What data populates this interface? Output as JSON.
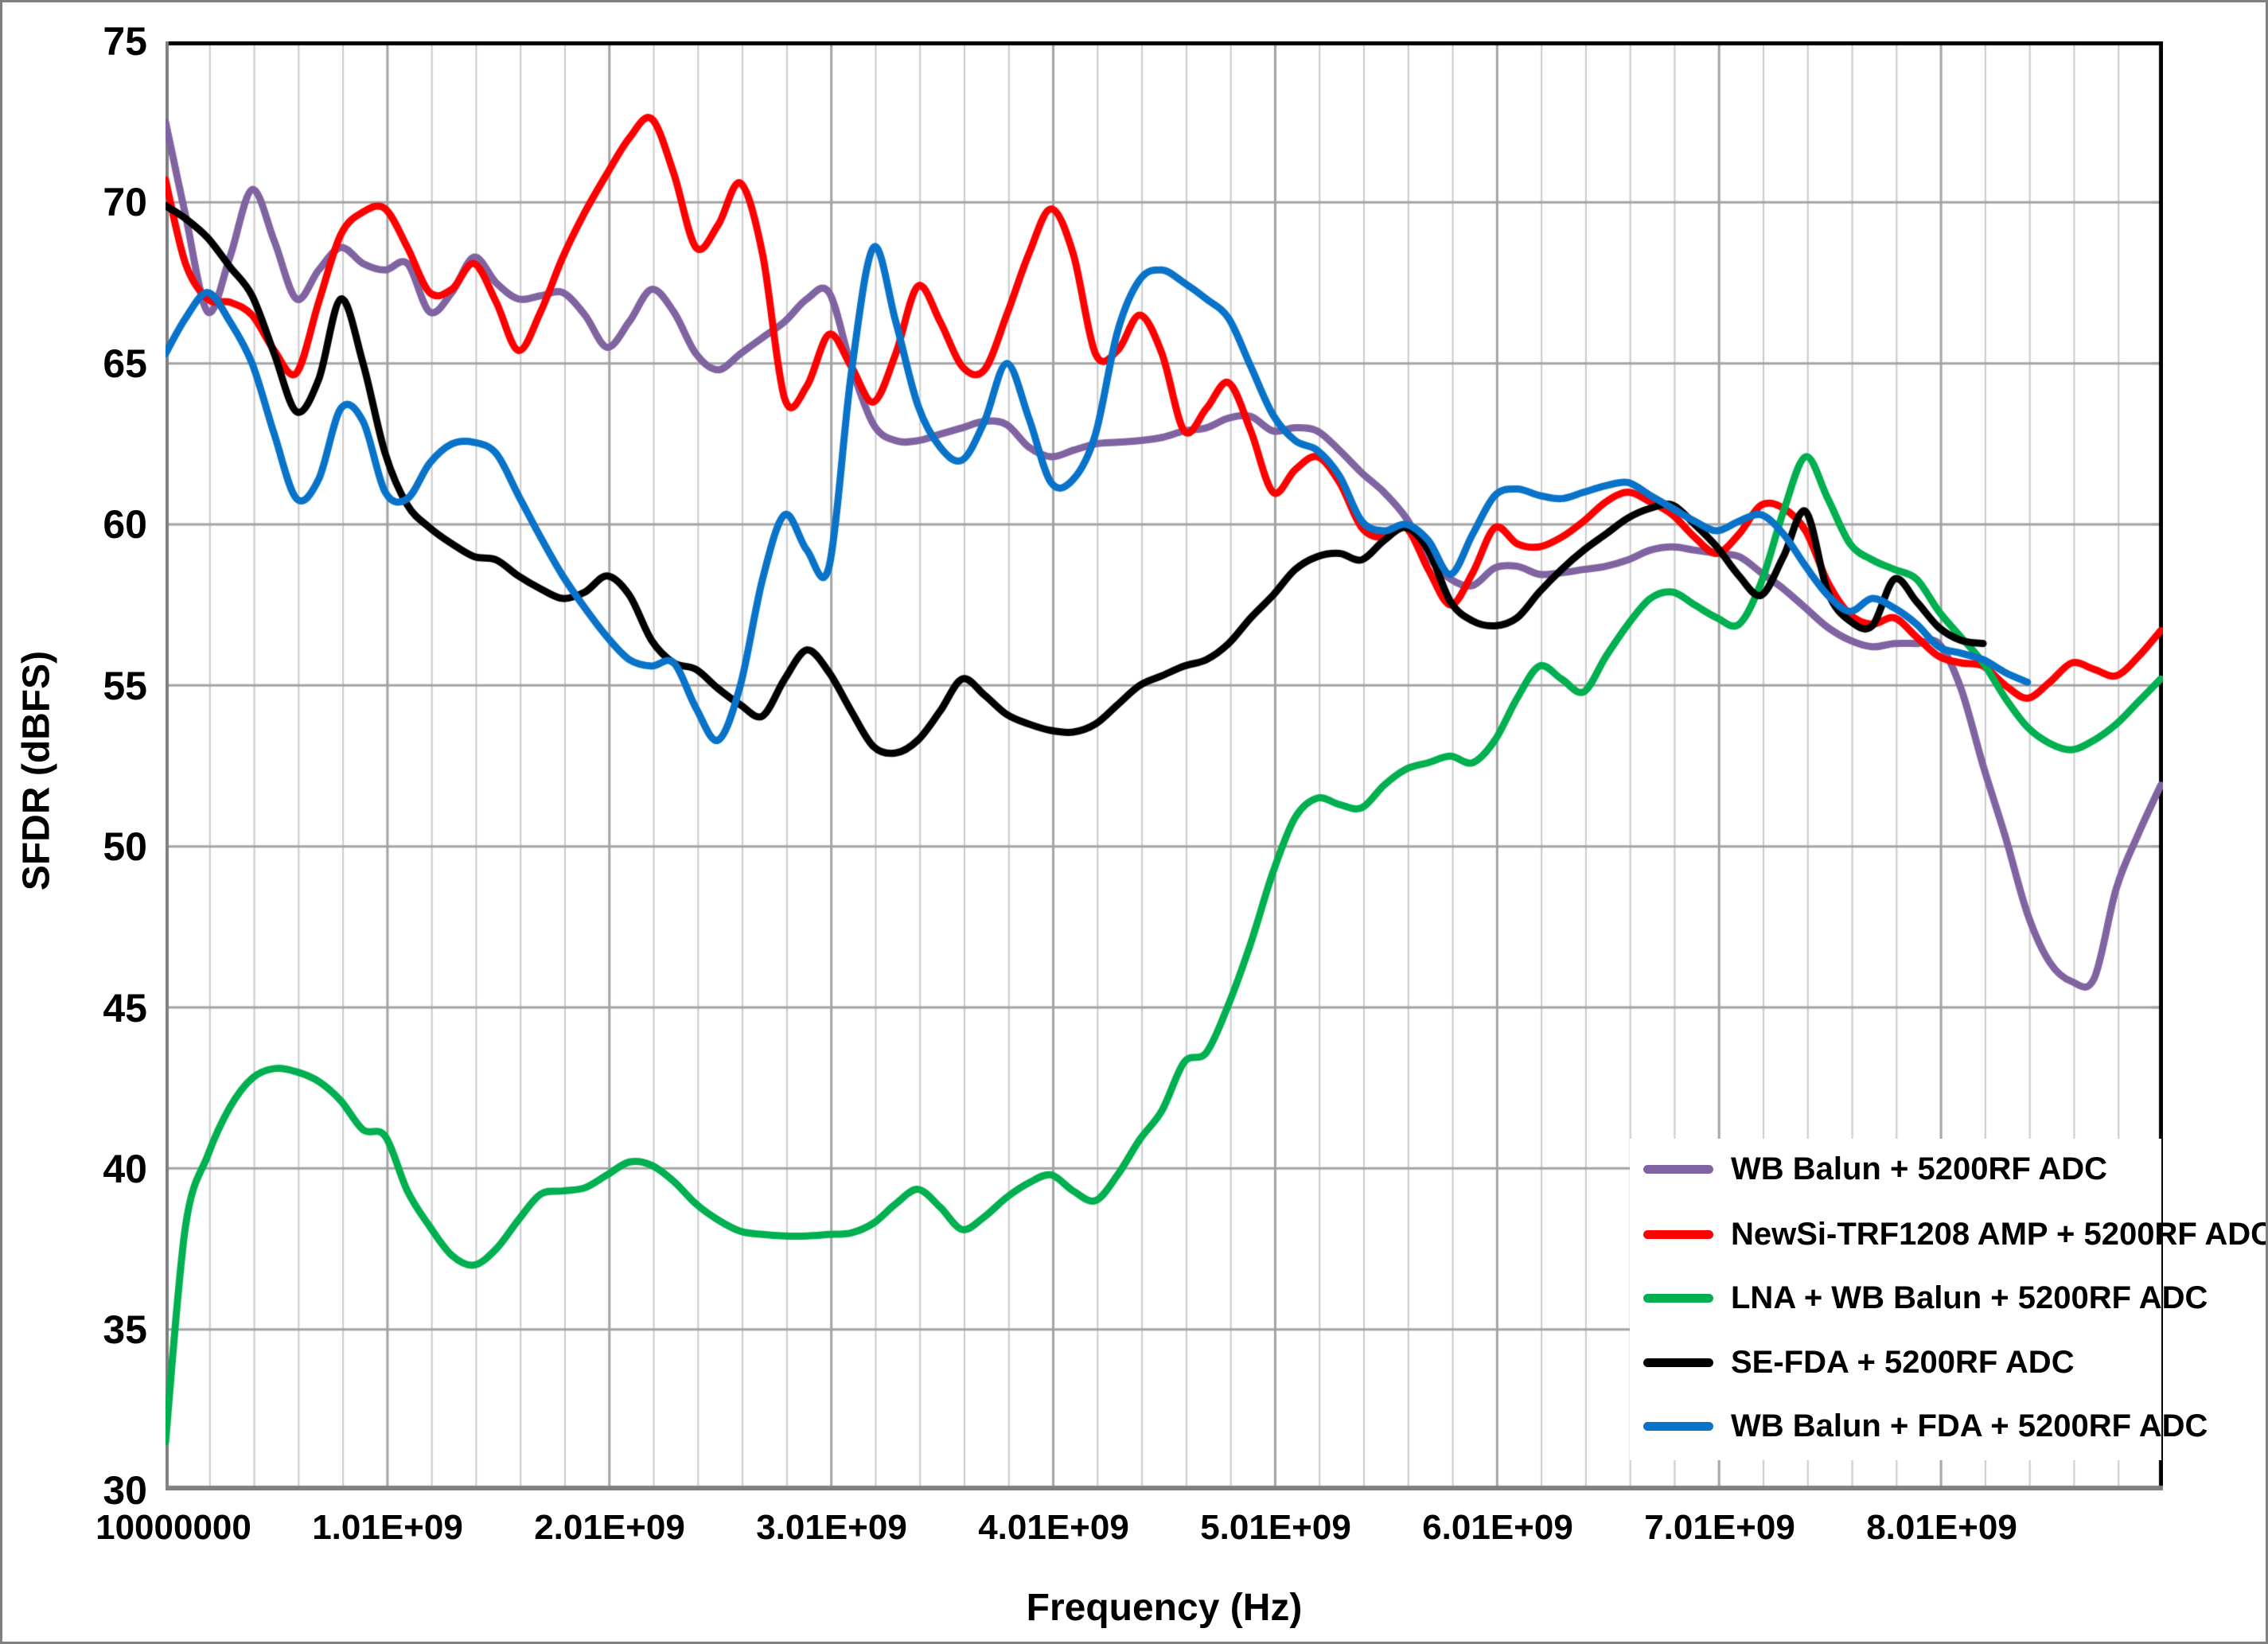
{
  "y_axis": {
    "title": "SFDR (dBFS)",
    "ticks": [
      "75",
      "70",
      "65",
      "60",
      "55",
      "50",
      "45",
      "40",
      "35",
      "30"
    ],
    "min": 30,
    "max": 75,
    "step": 5
  },
  "x_axis": {
    "title": "Frequency (Hz)",
    "tick_labels": [
      "10000000",
      "1.01E+09",
      "2.01E+09",
      "3.01E+09",
      "4.01E+09",
      "5.01E+09",
      "6.01E+09",
      "7.01E+09",
      "8.01E+09"
    ],
    "min_ghz": 0.01,
    "max_ghz": 9.01,
    "major_step_ghz": 1.0,
    "minor_step_ghz": 0.2
  },
  "legend": {
    "items": [
      {
        "label": "WB Balun + 5200RF ADC",
        "color": "#8064A2"
      },
      {
        "label": "NewSi-TRF1208 AMP + 5200RF ADC",
        "color": "#FF0000"
      },
      {
        "label": "LNA + WB Balun + 5200RF ADC",
        "color": "#00B050"
      },
      {
        "label": "SE-FDA + 5200RF ADC",
        "color": "#000000"
      },
      {
        "label": "WB Balun + FDA + 5200RF ADC",
        "color": "#0873C9"
      }
    ]
  },
  "colors": {
    "grid_minor": "#C9C9C9",
    "grid_major": "#A3A3A3",
    "border_dark": "#000000",
    "border_gray": "#808080"
  },
  "chart_data": {
    "type": "line",
    "title": "",
    "xlabel": "Frequency (Hz)",
    "ylabel": "SFDR (dBFS)",
    "x_unit": "GHz",
    "xlim": [
      0.01,
      9.01
    ],
    "ylim": [
      30,
      75
    ],
    "grid": true,
    "legend_position": "inside-bottom-right",
    "x": [
      0.01,
      0.1,
      0.2,
      0.3,
      0.4,
      0.5,
      0.6,
      0.7,
      0.8,
      0.9,
      1.0,
      1.1,
      1.2,
      1.3,
      1.4,
      1.5,
      1.6,
      1.7,
      1.8,
      1.9,
      2.0,
      2.1,
      2.2,
      2.3,
      2.4,
      2.5,
      2.6,
      2.7,
      2.8,
      2.9,
      3.0,
      3.1,
      3.2,
      3.3,
      3.4,
      3.5,
      3.6,
      3.7,
      3.8,
      3.9,
      4.0,
      4.1,
      4.2,
      4.3,
      4.4,
      4.5,
      4.6,
      4.7,
      4.8,
      4.9,
      5.0,
      5.1,
      5.2,
      5.3,
      5.4,
      5.5,
      5.6,
      5.7,
      5.8,
      5.9,
      6.0,
      6.1,
      6.2,
      6.3,
      6.4,
      6.5,
      6.6,
      6.7,
      6.8,
      6.9,
      7.0,
      7.1,
      7.2,
      7.3,
      7.4,
      7.5,
      7.6,
      7.7,
      7.8,
      7.9,
      8.0,
      8.1,
      8.2,
      8.3,
      8.4,
      8.5,
      8.6,
      8.7,
      8.8,
      8.9,
      9.0
    ],
    "series": [
      {
        "name": "WB Balun + 5200RF ADC",
        "color": "#8064A2",
        "values": [
          72.5,
          69.6,
          66.6,
          68.3,
          70.4,
          68.8,
          67.0,
          67.9,
          68.6,
          68.1,
          67.9,
          68.1,
          66.6,
          67.2,
          68.3,
          67.5,
          67.0,
          67.1,
          67.2,
          66.5,
          65.5,
          66.3,
          67.3,
          66.6,
          65.3,
          64.8,
          65.3,
          65.8,
          66.3,
          67.0,
          67.2,
          64.9,
          63.1,
          62.6,
          62.6,
          62.8,
          63.0,
          63.2,
          63.1,
          62.4,
          62.1,
          62.3,
          62.5,
          62.55,
          62.6,
          62.7,
          62.9,
          63.0,
          63.3,
          63.35,
          62.9,
          63.0,
          62.9,
          62.3,
          61.6,
          61.0,
          60.2,
          59.0,
          58.3,
          58.1,
          58.65,
          58.7,
          58.45,
          58.5,
          58.6,
          58.7,
          58.9,
          59.2,
          59.3,
          59.2,
          59.1,
          59.0,
          58.5,
          58.0,
          57.4,
          56.8,
          56.4,
          56.2,
          56.3,
          56.3,
          56.3,
          54.9,
          52.5,
          50.3,
          47.9,
          46.4,
          45.8,
          45.9,
          48.7,
          50.4,
          51.9
        ]
      },
      {
        "name": "NewSi-TRF1208 AMP + 5200RF ADC",
        "color": "#FF0000",
        "values": [
          70.7,
          68.1,
          67.0,
          66.9,
          66.5,
          65.4,
          64.7,
          66.9,
          69.0,
          69.7,
          69.8,
          68.6,
          67.2,
          67.3,
          68.1,
          66.9,
          65.4,
          66.6,
          68.3,
          69.7,
          70.9,
          72.0,
          72.6,
          70.9,
          68.6,
          69.3,
          70.6,
          68.4,
          63.9,
          64.3,
          65.9,
          64.9,
          63.8,
          65.3,
          67.4,
          66.3,
          64.9,
          64.8,
          66.5,
          68.4,
          69.8,
          68.4,
          65.3,
          65.4,
          66.5,
          65.3,
          62.9,
          63.6,
          64.4,
          62.9,
          61.0,
          61.7,
          62.1,
          61.3,
          59.9,
          59.6,
          59.9,
          58.6,
          57.5,
          58.5,
          59.9,
          59.4,
          59.3,
          59.6,
          60.1,
          60.7,
          61.0,
          60.7,
          60.3,
          59.6,
          59.1,
          59.7,
          60.6,
          60.5,
          59.8,
          58.2,
          57.2,
          56.9,
          57.1,
          56.5,
          55.9,
          55.7,
          55.6,
          55.0,
          54.6,
          55.1,
          55.7,
          55.5,
          55.3,
          55.9,
          56.7
        ]
      },
      {
        "name": "LNA + WB Balun + 5200RF ADC",
        "color": "#00B050",
        "values": [
          31.5,
          38.2,
          40.4,
          41.9,
          42.8,
          43.1,
          43.0,
          42.7,
          42.1,
          41.2,
          41.0,
          39.3,
          38.2,
          37.3,
          37.0,
          37.5,
          38.4,
          39.2,
          39.3,
          39.4,
          39.8,
          40.2,
          40.1,
          39.6,
          38.9,
          38.4,
          38.05,
          37.95,
          37.9,
          37.9,
          37.95,
          38.0,
          38.3,
          38.9,
          39.35,
          38.8,
          38.1,
          38.5,
          39.1,
          39.55,
          39.8,
          39.3,
          39.0,
          39.8,
          40.9,
          41.8,
          43.3,
          43.6,
          45.1,
          47.0,
          49.2,
          50.9,
          51.5,
          51.3,
          51.2,
          51.9,
          52.4,
          52.6,
          52.8,
          52.6,
          53.3,
          54.6,
          55.6,
          55.2,
          54.8,
          55.9,
          56.9,
          57.7,
          57.9,
          57.5,
          57.1,
          56.9,
          58.2,
          60.4,
          62.1,
          60.8,
          59.4,
          58.9,
          58.6,
          58.3,
          57.3,
          56.5,
          55.7,
          54.6,
          53.7,
          53.2,
          53.0,
          53.3,
          53.8,
          54.5,
          55.2
        ]
      },
      {
        "name": "SE-FDA + 5200RF ADC",
        "color": "#000000",
        "values": [
          69.9,
          69.5,
          68.9,
          68.0,
          67.1,
          65.3,
          63.5,
          64.5,
          67.0,
          65.0,
          62.2,
          60.6,
          59.9,
          59.4,
          59.0,
          58.9,
          58.4,
          58.0,
          57.7,
          57.9,
          58.4,
          57.8,
          56.4,
          55.7,
          55.5,
          54.9,
          54.4,
          54.05,
          55.2,
          56.1,
          55.4,
          54.2,
          53.1,
          52.9,
          53.3,
          54.2,
          55.2,
          54.7,
          54.1,
          53.8,
          53.6,
          53.55,
          53.8,
          54.4,
          55.0,
          55.3,
          55.6,
          55.8,
          56.3,
          57.1,
          57.8,
          58.6,
          59.0,
          59.1,
          58.9,
          59.5,
          59.9,
          59.2,
          57.6,
          57.0,
          56.85,
          57.1,
          57.9,
          58.6,
          59.2,
          59.7,
          60.2,
          60.5,
          60.6,
          60.0,
          59.3,
          58.4,
          57.8,
          59.0,
          60.4,
          57.9,
          57.0,
          56.85,
          58.3,
          57.6,
          56.8,
          56.4,
          56.3,
          null,
          null,
          null,
          null,
          null,
          null,
          null,
          null
        ]
      },
      {
        "name": "WB Balun + FDA + 5200RF ADC",
        "color": "#0873C9",
        "values": [
          65.3,
          66.4,
          67.2,
          66.3,
          65.0,
          62.8,
          60.8,
          61.4,
          63.6,
          63.2,
          61.0,
          60.8,
          61.9,
          62.5,
          62.55,
          62.2,
          60.9,
          59.6,
          58.4,
          57.4,
          56.5,
          55.8,
          55.6,
          55.7,
          54.3,
          53.3,
          55.0,
          58.3,
          60.3,
          59.2,
          58.7,
          64.7,
          68.6,
          66.3,
          63.7,
          62.4,
          62.0,
          63.2,
          65.0,
          63.3,
          61.3,
          61.4,
          62.8,
          66.0,
          67.6,
          67.9,
          67.5,
          67.0,
          66.4,
          64.9,
          63.4,
          62.6,
          62.3,
          61.5,
          60.1,
          59.8,
          60.0,
          59.5,
          58.45,
          59.7,
          60.9,
          61.1,
          60.9,
          60.8,
          61.0,
          61.2,
          61.3,
          60.9,
          60.5,
          60.1,
          59.8,
          60.1,
          60.3,
          59.7,
          58.7,
          57.8,
          57.3,
          57.7,
          57.4,
          56.9,
          56.2,
          56.0,
          55.8,
          55.4,
          55.1,
          null,
          null,
          null,
          null,
          null,
          null
        ]
      }
    ]
  }
}
